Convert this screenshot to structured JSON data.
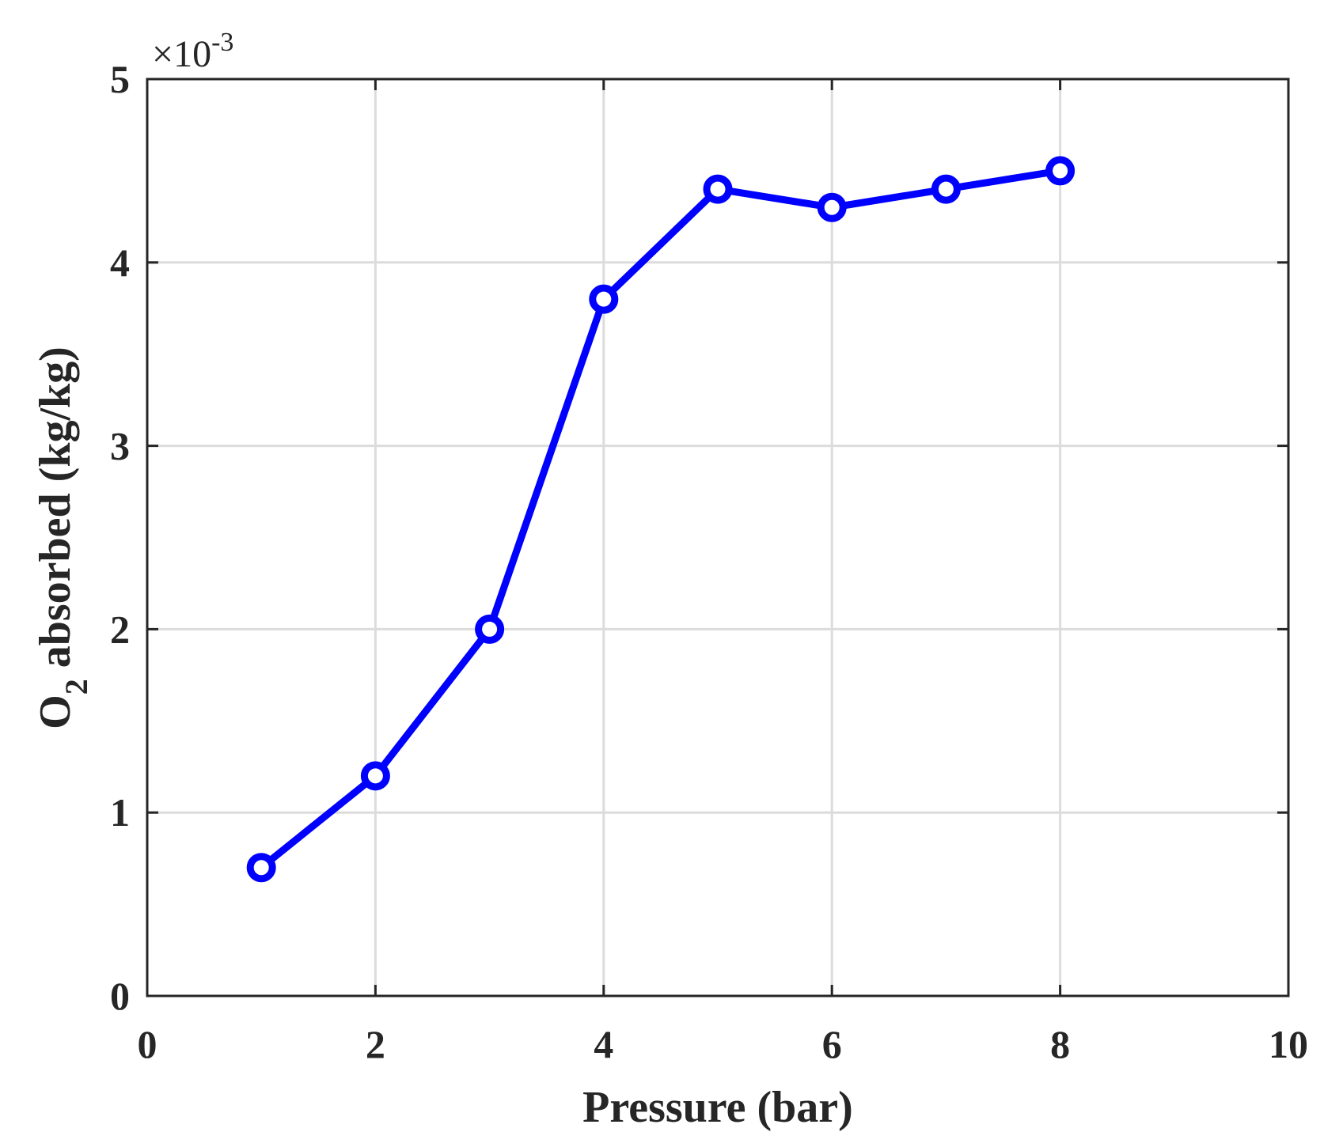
{
  "chart_data": {
    "type": "line",
    "xlabel": "Pressure (bar)",
    "ylabel_main": "O",
    "ylabel_subscript": "2",
    "ylabel_rest": " absorbed (kg/kg)",
    "y_multiplier": {
      "base": "×10",
      "exponent": "-3"
    },
    "xlim": [
      0,
      10
    ],
    "ylim": [
      0,
      5
    ],
    "xticks": [
      0,
      2,
      4,
      6,
      8,
      10
    ],
    "xtick_labels": [
      "0",
      "2",
      "4",
      "6",
      "8",
      "10"
    ],
    "yticks": [
      0,
      1,
      2,
      3,
      4,
      5
    ],
    "ytick_labels": [
      "0",
      "1",
      "2",
      "3",
      "4",
      "5"
    ],
    "grid": true,
    "series": [
      {
        "color": "#0000ff",
        "marker": "circle",
        "x": [
          1,
          2,
          3,
          4,
          5,
          6,
          7,
          8
        ],
        "y": [
          0.7,
          1.2,
          2.0,
          3.8,
          4.4,
          4.3,
          4.4,
          4.5
        ]
      }
    ]
  }
}
